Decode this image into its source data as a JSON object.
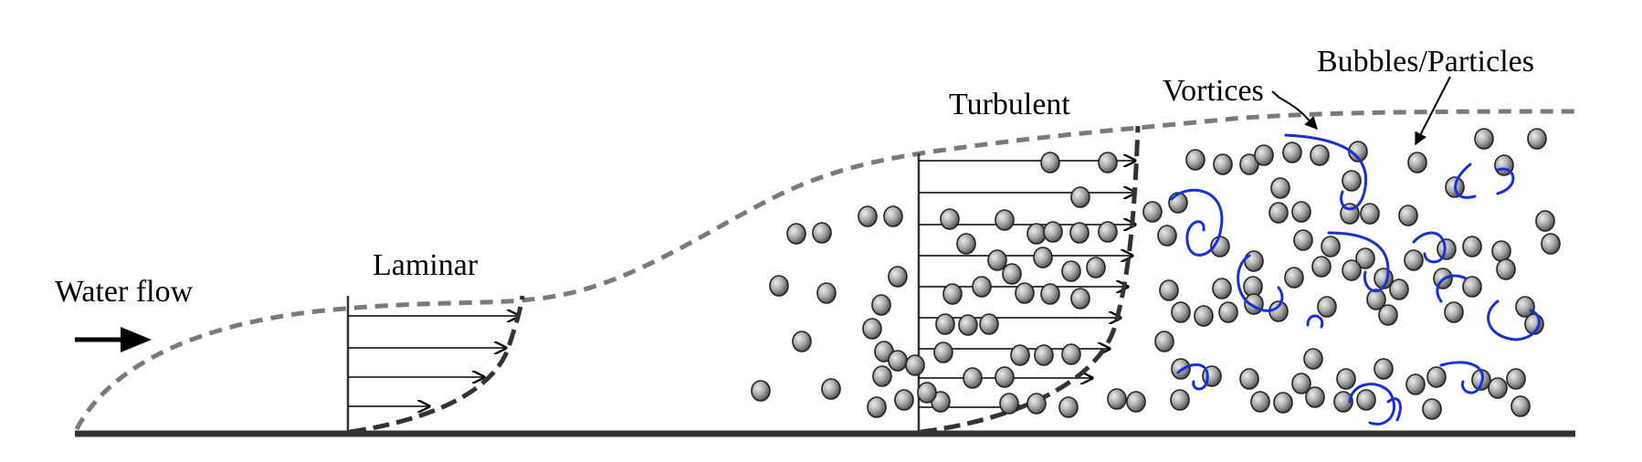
{
  "labels": {
    "water_flow": "Water flow",
    "laminar": "Laminar",
    "turbulent": "Turbulent",
    "vortices": "Vortices",
    "bubbles_particles": "Bubbles/Particles"
  },
  "colors": {
    "boundary_layer_edge": "#7a7a7a",
    "velocity_profile": "#333333",
    "vortex": "#1a2fd6",
    "bubble_fill": "#9a9a9a",
    "wall": "#333333"
  },
  "icons": {
    "flow_direction": "right-arrow-icon"
  }
}
